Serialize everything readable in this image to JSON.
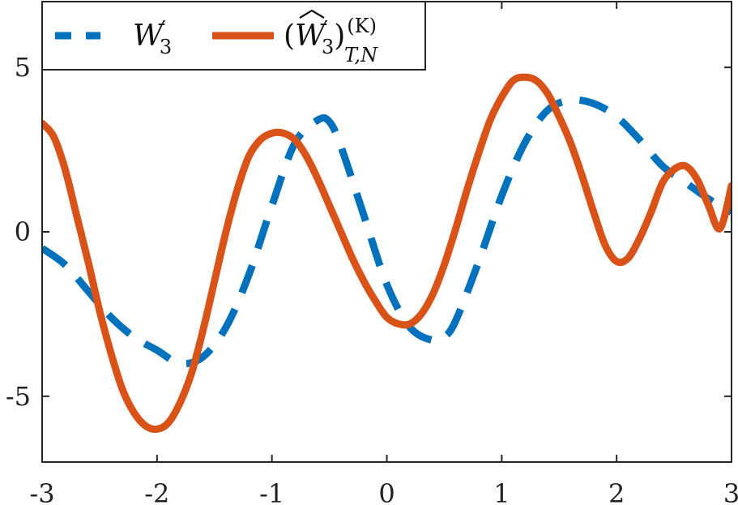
{
  "chart_data": {
    "type": "line",
    "xlim": [
      -3,
      3
    ],
    "ylim": [
      -7,
      7
    ],
    "xticks": [
      -3,
      -2,
      -1,
      0,
      1,
      2,
      3
    ],
    "yticks": [
      5,
      0,
      -5
    ],
    "xtick_labels": [
      "-3",
      "-2",
      "-1",
      "0",
      "1",
      "2",
      "3"
    ],
    "ytick_labels": [
      "5",
      "0",
      "-5"
    ],
    "grid": false,
    "legend_position": "top-left",
    "series": [
      {
        "name": "W′₃",
        "style": "dashed",
        "color": "#0072BD",
        "x": [
          -3.0,
          -2.8,
          -2.6,
          -2.4,
          -2.2,
          -2.0,
          -1.8,
          -1.6,
          -1.4,
          -1.2,
          -1.0,
          -0.8,
          -0.6,
          -0.5,
          -0.4,
          -0.2,
          0.0,
          0.2,
          0.4,
          0.5,
          0.6,
          0.8,
          1.0,
          1.2,
          1.4,
          1.6,
          1.8,
          2.0,
          2.2,
          2.4,
          2.6,
          2.8,
          3.0
        ],
        "y": [
          -0.5,
          -1.0,
          -1.8,
          -2.6,
          -3.2,
          -3.6,
          -4.0,
          -3.8,
          -2.9,
          -1.3,
          0.8,
          2.7,
          3.4,
          3.35,
          2.6,
          0.5,
          -1.6,
          -2.9,
          -3.3,
          -3.2,
          -2.7,
          -0.9,
          1.1,
          2.7,
          3.7,
          4.0,
          3.9,
          3.5,
          2.8,
          2.0,
          1.5,
          1.0,
          0.6
        ]
      },
      {
        "name": "(Ŵ′₃)_{T,N}^{(K)}",
        "style": "solid",
        "color": "#D95319",
        "x": [
          -3.0,
          -2.9,
          -2.8,
          -2.7,
          -2.6,
          -2.5,
          -2.4,
          -2.3,
          -2.2,
          -2.1,
          -2.0,
          -1.9,
          -1.8,
          -1.7,
          -1.6,
          -1.5,
          -1.4,
          -1.3,
          -1.2,
          -1.1,
          -1.0,
          -0.9,
          -0.8,
          -0.7,
          -0.6,
          -0.5,
          -0.4,
          -0.3,
          -0.2,
          -0.1,
          0.0,
          0.1,
          0.2,
          0.3,
          0.4,
          0.5,
          0.6,
          0.7,
          0.8,
          0.9,
          1.0,
          1.1,
          1.2,
          1.3,
          1.4,
          1.5,
          1.6,
          1.7,
          1.8,
          1.9,
          2.0,
          2.1,
          2.2,
          2.3,
          2.4,
          2.5,
          2.6,
          2.7,
          2.8,
          2.9,
          3.0
        ],
        "y": [
          3.3,
          2.9,
          1.9,
          0.5,
          -0.9,
          -2.4,
          -3.7,
          -4.8,
          -5.5,
          -5.9,
          -6.0,
          -5.8,
          -5.2,
          -4.3,
          -3.0,
          -1.5,
          0.0,
          1.3,
          2.3,
          2.8,
          3.0,
          3.0,
          2.8,
          2.3,
          1.6,
          0.8,
          0.0,
          -0.8,
          -1.5,
          -2.1,
          -2.6,
          -2.8,
          -2.8,
          -2.5,
          -1.9,
          -1.0,
          0.1,
          1.3,
          2.4,
          3.4,
          4.1,
          4.6,
          4.7,
          4.6,
          4.2,
          3.5,
          2.7,
          1.7,
          0.6,
          -0.4,
          -0.9,
          -0.8,
          -0.2,
          0.6,
          1.5,
          1.9,
          2.0,
          1.6,
          0.8,
          0.1,
          1.4
        ]
      }
    ]
  }
}
